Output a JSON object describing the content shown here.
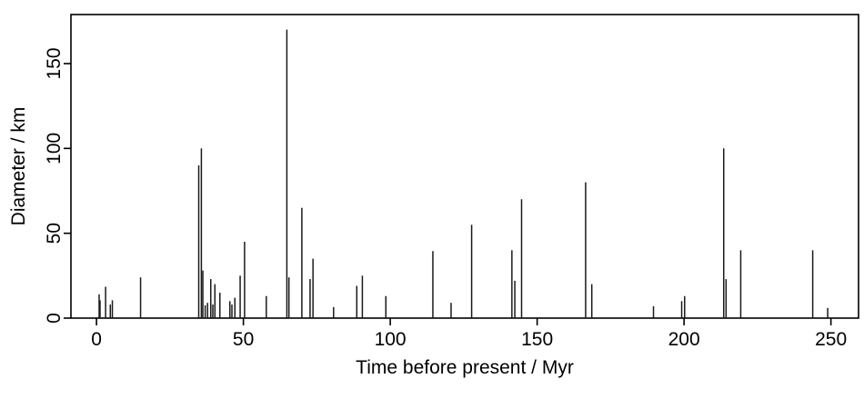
{
  "chart_data": {
    "type": "bar",
    "subtype": "vertical-spike-plot",
    "title": "",
    "xlabel": "Time before present / Myr",
    "ylabel": "Diameter / km",
    "x_unit": "Myr",
    "y_unit": "km",
    "xlim": [
      -8.7,
      259.4
    ],
    "ylim": [
      0,
      178.9
    ],
    "xticks": [
      0,
      50,
      100,
      150,
      200,
      250
    ],
    "yticks": [
      0,
      50,
      100,
      150
    ],
    "grid": false,
    "legend": false,
    "axis_color": "#000000",
    "spike_color": "#1a1a1a",
    "background": "#ffffff",
    "points": [
      [
        0.9,
        14
      ],
      [
        1.2,
        10.5
      ],
      [
        3.1,
        18.5
      ],
      [
        4.7,
        8
      ],
      [
        5.4,
        10.5
      ],
      [
        15,
        24
      ],
      [
        34.8,
        90
      ],
      [
        35.7,
        100
      ],
      [
        36.2,
        28
      ],
      [
        37,
        7.5
      ],
      [
        37.8,
        9
      ],
      [
        38.9,
        23
      ],
      [
        39.6,
        8
      ],
      [
        40.3,
        20
      ],
      [
        42,
        15
      ],
      [
        45.4,
        10
      ],
      [
        46.1,
        8
      ],
      [
        47.1,
        12
      ],
      [
        48.9,
        25
      ],
      [
        50.4,
        45
      ],
      [
        57.8,
        13
      ],
      [
        64.8,
        170
      ],
      [
        65.5,
        24
      ],
      [
        69.9,
        65
      ],
      [
        72.7,
        23
      ],
      [
        73.7,
        35
      ],
      [
        80.7,
        6.5
      ],
      [
        88.6,
        19
      ],
      [
        90.5,
        25
      ],
      [
        98.5,
        13
      ],
      [
        114.5,
        39.5
      ],
      [
        120.7,
        9
      ],
      [
        127.7,
        55
      ],
      [
        141.4,
        40
      ],
      [
        142.4,
        22
      ],
      [
        144.7,
        70
      ],
      [
        166.5,
        80
      ],
      [
        168.6,
        20
      ],
      [
        189.6,
        7
      ],
      [
        199.2,
        10
      ],
      [
        200.2,
        13
      ],
      [
        213.5,
        100
      ],
      [
        214.3,
        23
      ],
      [
        219.3,
        40
      ],
      [
        243.8,
        40
      ],
      [
        248.9,
        6
      ]
    ]
  }
}
